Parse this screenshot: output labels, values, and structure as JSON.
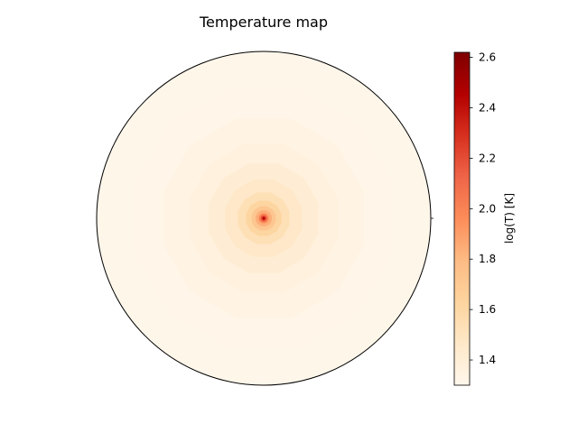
{
  "chart_data": {
    "type": "heatmap",
    "projection": "polar",
    "title": "Temperature map",
    "colorbar": {
      "label": "log(T) [K]",
      "colormap": "OrRd",
      "vmin": 1.3,
      "vmax": 2.62,
      "ticks": [
        1.4,
        1.6,
        1.8,
        2.0,
        2.2,
        2.4,
        2.6
      ],
      "tick_labels": [
        "1.4",
        "1.6",
        "1.8",
        "2.0",
        "2.2",
        "2.4",
        "2.6"
      ]
    },
    "rings": [
      {
        "r": 1.0,
        "value": 1.31
      },
      {
        "r": 0.8,
        "value": 1.32
      },
      {
        "r": 0.62,
        "value": 1.34
      },
      {
        "r": 0.46,
        "value": 1.37
      },
      {
        "r": 0.34,
        "value": 1.41
      },
      {
        "r": 0.24,
        "value": 1.46
      },
      {
        "r": 0.16,
        "value": 1.53
      },
      {
        "r": 0.11,
        "value": 1.62
      },
      {
        "r": 0.075,
        "value": 1.72
      },
      {
        "r": 0.05,
        "value": 1.84
      },
      {
        "r": 0.03,
        "value": 2.0
      },
      {
        "r": 0.018,
        "value": 2.2
      },
      {
        "r": 0.009,
        "value": 2.45
      }
    ]
  },
  "colors": {
    "stops": [
      "#fff7ec",
      "#fee8c8",
      "#fdd49e",
      "#fdbb84",
      "#fc8d59",
      "#ef6548",
      "#d7301f",
      "#b30000",
      "#7f0000"
    ]
  }
}
